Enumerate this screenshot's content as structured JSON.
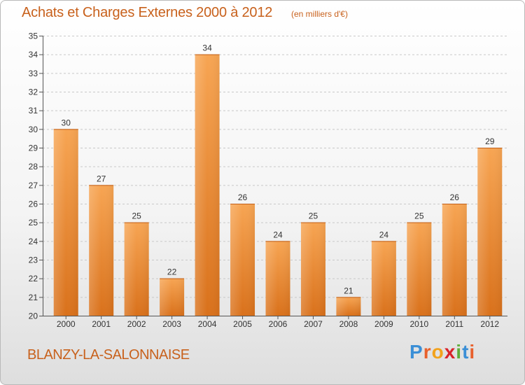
{
  "header": {
    "title": "Achats et Charges Externes 2000 à 2012",
    "unit": "(en milliers d'€)"
  },
  "footer": {
    "commune": "BLANZY-LA-SALONNAISE",
    "logo_letters": [
      "P",
      "r",
      "o",
      "x",
      "i",
      "t",
      "i"
    ],
    "logo_colors": [
      "#3b8fd6",
      "#e8602c",
      "#f2a21c",
      "#d8232a",
      "#5fae3b",
      "#3b8fd6",
      "#e8602c"
    ]
  },
  "colors": {
    "bar_top": "#f7a553",
    "bar_bottom": "#d9711b",
    "text": "#c8611c",
    "axis": "#555555",
    "grid": "#c8c8c8"
  },
  "chart_data": {
    "type": "bar",
    "title": "Achats et Charges Externes 2000 à 2012",
    "xlabel": "",
    "ylabel": "",
    "categories": [
      "2000",
      "2001",
      "2002",
      "2003",
      "2004",
      "2005",
      "2006",
      "2007",
      "2008",
      "2009",
      "2010",
      "2011",
      "2012"
    ],
    "values": [
      30,
      27,
      25,
      22,
      34,
      26,
      24,
      25,
      21,
      24,
      25,
      26,
      29
    ],
    "ylim": [
      20,
      35
    ],
    "yticks": [
      20,
      21,
      22,
      23,
      24,
      25,
      26,
      27,
      28,
      29,
      30,
      31,
      32,
      33,
      34,
      35
    ],
    "grid": true,
    "data_labels": true
  }
}
